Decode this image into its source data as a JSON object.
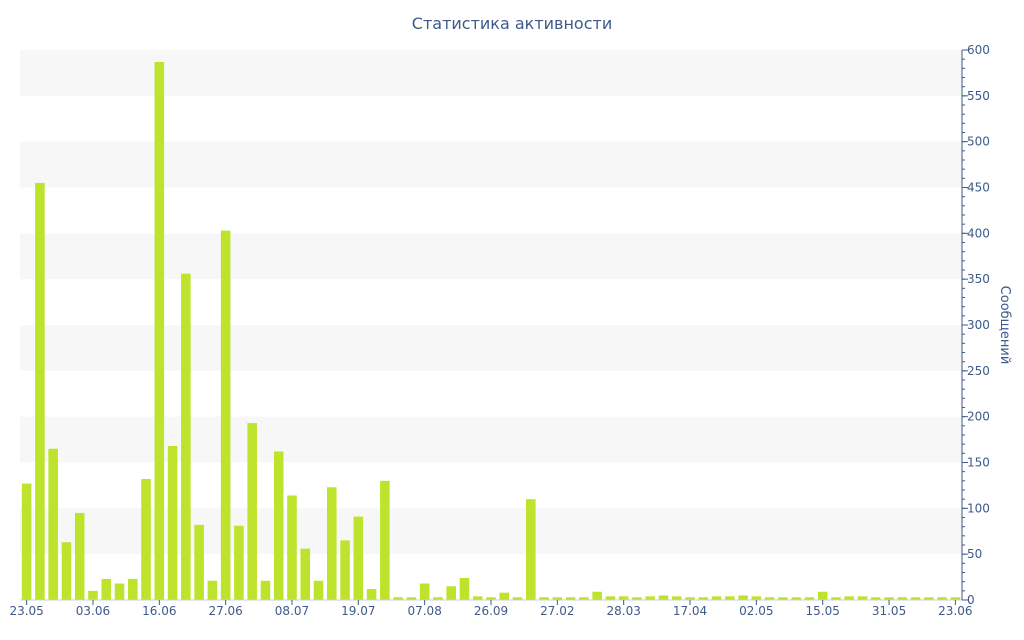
{
  "chart_data": {
    "type": "bar",
    "title": "Статистика активности",
    "xlabel": "",
    "ylabel": "Сообщений",
    "y_axis_side": "right",
    "ylim": [
      0,
      600
    ],
    "yticks": [
      0,
      50,
      100,
      150,
      200,
      250,
      300,
      350,
      400,
      450,
      500,
      550,
      600
    ],
    "grid": "alternating horizontal bands",
    "bar_color": "#bde32c",
    "band_color": "#f7f7f7",
    "text_color": "#3d5a8a",
    "x_tick_labels": [
      {
        "index": 0,
        "label": "23.05"
      },
      {
        "index": 5,
        "label": "03.06"
      },
      {
        "index": 10,
        "label": "16.06"
      },
      {
        "index": 15,
        "label": "27.06"
      },
      {
        "index": 20,
        "label": "08.07"
      },
      {
        "index": 25,
        "label": "19.07"
      },
      {
        "index": 30,
        "label": "07.08"
      },
      {
        "index": 35,
        "label": "26.09"
      },
      {
        "index": 40,
        "label": "27.02"
      },
      {
        "index": 45,
        "label": "28.03"
      },
      {
        "index": 50,
        "label": "17.04"
      },
      {
        "index": 55,
        "label": "02.05"
      },
      {
        "index": 60,
        "label": "15.05"
      },
      {
        "index": 65,
        "label": "31.05"
      },
      {
        "index": 70,
        "label": "23.06"
      }
    ],
    "values": [
      127,
      455,
      165,
      63,
      95,
      10,
      23,
      18,
      23,
      132,
      587,
      168,
      356,
      82,
      21,
      403,
      81,
      193,
      21,
      162,
      114,
      56,
      21,
      123,
      65,
      91,
      12,
      130,
      3,
      3,
      18,
      3,
      15,
      24,
      4,
      3,
      8,
      3,
      110,
      3,
      3,
      3,
      3,
      9,
      4,
      4,
      3,
      4,
      5,
      4,
      3,
      3,
      4,
      4,
      5,
      4,
      3,
      3,
      3,
      3,
      9,
      3,
      4,
      4,
      3,
      3,
      3,
      3,
      3,
      3,
      3
    ]
  }
}
